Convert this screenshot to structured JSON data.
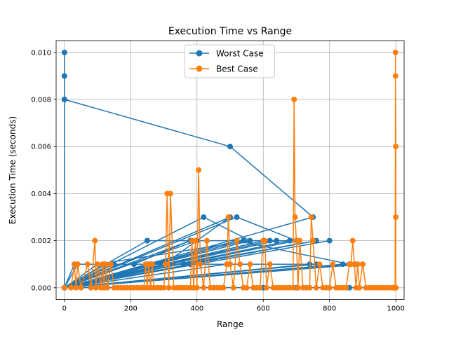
{
  "chart_data": {
    "type": "line",
    "title": "Execution Time vs Range",
    "xlabel": "Range",
    "ylabel": "Execution Time (seconds)",
    "xlim": [
      -25,
      1025
    ],
    "ylim": [
      -0.0005,
      0.0105
    ],
    "xticks": [
      0,
      200,
      400,
      600,
      800,
      1000
    ],
    "xtick_labels": [
      "0",
      "200",
      "400",
      "600",
      "800",
      "1000"
    ],
    "yticks": [
      0.0,
      0.002,
      0.004,
      0.006,
      0.008,
      0.01
    ],
    "ytick_labels": [
      "0.000",
      "0.002",
      "0.004",
      "0.006",
      "0.008",
      "0.010"
    ],
    "grid": true,
    "legend": {
      "placement": "upper center"
    },
    "series": [
      {
        "name": "Worst Case",
        "color": "#1f77b4",
        "marker": "circle",
        "x": [
          0,
          0,
          0,
          0,
          0,
          0,
          0,
          500,
          750,
          0,
          600,
          0,
          520,
          0,
          700,
          0,
          800,
          0,
          250,
          0,
          400,
          0,
          640,
          0,
          30,
          210,
          380,
          520,
          860,
          0,
          520,
          700,
          0,
          680,
          0,
          380,
          540,
          0,
          100,
          560,
          0,
          250,
          620,
          0,
          40,
          360,
          760,
          0,
          420,
          560,
          680,
          0,
          600,
          0,
          120,
          300,
          500,
          0,
          150,
          260,
          760,
          0,
          250,
          0,
          860,
          0,
          380,
          0,
          740,
          0,
          860,
          0,
          490,
          0,
          900,
          0,
          880,
          0,
          840,
          0,
          960,
          0,
          700,
          0,
          240,
          0,
          860,
          0,
          600,
          0,
          1000
        ],
        "y": [
          0.01,
          0.0,
          0.009,
          0.0,
          0.008,
          0.0,
          0.008,
          0.006,
          0.003,
          0.0,
          0.002,
          0.0,
          0.002,
          0.0,
          0.002,
          0.0,
          0.002,
          0.0,
          0.002,
          0.0,
          0.002,
          0.0,
          0.002,
          0.0,
          0.001,
          0.001,
          0.002,
          0.002,
          0.001,
          0.0,
          0.003,
          0.002,
          0.0,
          0.002,
          0.0,
          0.002,
          0.002,
          0.0,
          0.001,
          0.002,
          0.0,
          0.002,
          0.002,
          0.0,
          0.001,
          0.001,
          0.002,
          0.0,
          0.003,
          0.002,
          0.002,
          0.0,
          0.002,
          0.0,
          0.001,
          0.001,
          0.003,
          0.0,
          0.001,
          0.001,
          0.001,
          0.0,
          0.001,
          0.0,
          0.001,
          0.0,
          0.001,
          0.0,
          0.001,
          0.0,
          0.001,
          0.0,
          0.001,
          0.0,
          0.001,
          0.0,
          0.001,
          0.0,
          0.001,
          0.0,
          0.0,
          0.0,
          0.0,
          0.0,
          0.0,
          0.0,
          0.0,
          0.0,
          0.0,
          0.0,
          0.0
        ]
      },
      {
        "name": "Best Case",
        "color": "#ff7f0e",
        "marker": "circle",
        "x": [
          0,
          20,
          30,
          35,
          40,
          50,
          70,
          80,
          92,
          95,
          100,
          110,
          115,
          120,
          125,
          130,
          140,
          150,
          160,
          170,
          180,
          190,
          200,
          210,
          220,
          230,
          240,
          245,
          250,
          255,
          260,
          265,
          270,
          280,
          290,
          300,
          305,
          310,
          315,
          320,
          330,
          340,
          350,
          360,
          370,
          380,
          385,
          390,
          395,
          400,
          405,
          410,
          420,
          430,
          440,
          450,
          460,
          470,
          480,
          490,
          495,
          500,
          510,
          520,
          530,
          540,
          550,
          560,
          570,
          580,
          590,
          600,
          605,
          610,
          620,
          630,
          640,
          650,
          660,
          670,
          680,
          690,
          693,
          696,
          700,
          705,
          710,
          720,
          730,
          740,
          745,
          750,
          760,
          770,
          780,
          790,
          800,
          810,
          820,
          830,
          840,
          850,
          860,
          865,
          870,
          875,
          880,
          885,
          890,
          900,
          910,
          920,
          930,
          940,
          950,
          960,
          970,
          980,
          990,
          995,
          998,
          999,
          999,
          1000,
          1000,
          1000
        ],
        "y": [
          0.0,
          0.0,
          0.001,
          0.0,
          0.001,
          0.0,
          0.001,
          0.0,
          0.002,
          0.0,
          0.001,
          0.0,
          0.001,
          0.0,
          0.001,
          0.0,
          0.001,
          0.0,
          0.0,
          0.0,
          0.0,
          0.0,
          0.0,
          0.0,
          0.0,
          0.0,
          0.0,
          0.001,
          0.0,
          0.001,
          0.0,
          0.001,
          0.0,
          0.0,
          0.0,
          0.0,
          0.001,
          0.004,
          0.0,
          0.004,
          0.0,
          0.0,
          0.0,
          0.0,
          0.0,
          0.0,
          0.002,
          0.0,
          0.002,
          0.0,
          0.005,
          0.001,
          0.0,
          0.002,
          0.0,
          0.0,
          0.0,
          0.0,
          0.0,
          0.001,
          0.003,
          0.001,
          0.0,
          0.002,
          0.001,
          0.0,
          0.0,
          0.001,
          0.0,
          0.0,
          0.0,
          0.002,
          0.002,
          0.0,
          0.001,
          0.0,
          0.0,
          0.0,
          0.0,
          0.0,
          0.0,
          0.0,
          0.008,
          0.003,
          0.002,
          0.0,
          0.002,
          0.0,
          0.0,
          0.0,
          0.003,
          0.002,
          0.0,
          0.001,
          0.0,
          0.0,
          0.0,
          0.001,
          0.0,
          0.0,
          0.0,
          0.0,
          0.001,
          0.001,
          0.002,
          0.001,
          0.0,
          0.001,
          0.0,
          0.001,
          0.0,
          0.0,
          0.0,
          0.0,
          0.0,
          0.0,
          0.0,
          0.0,
          0.0,
          0.0,
          0.0,
          0.01,
          0.009,
          0.006,
          0.003,
          0.0
        ]
      }
    ]
  }
}
